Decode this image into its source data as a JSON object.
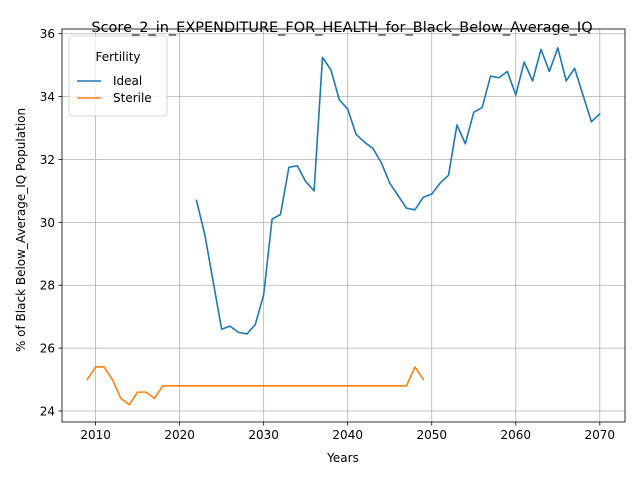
{
  "chart_data": {
    "type": "line",
    "title": "Score_2_in_EXPENDITURE_FOR_HEALTH_for_Black_Below_Average_IQ",
    "xlabel": "Years",
    "ylabel": "% of Black Below_Average_IQ Population",
    "xlim": [
      2006,
      2073
    ],
    "ylim": [
      23.65,
      36.15
    ],
    "xticks": [
      2010,
      2020,
      2030,
      2040,
      2050,
      2060,
      2070
    ],
    "yticks": [
      24,
      26,
      28,
      30,
      32,
      34,
      36
    ],
    "grid": true,
    "legend": {
      "title": "Fertility",
      "position": "upper-left"
    },
    "series": [
      {
        "name": "Ideal",
        "color": "#1f77b4",
        "x": [
          2022,
          2023,
          2024,
          2025,
          2026,
          2027,
          2028,
          2029,
          2030,
          2031,
          2032,
          2033,
          2034,
          2035,
          2036,
          2037,
          2038,
          2039,
          2040,
          2041,
          2042,
          2043,
          2044,
          2045,
          2046,
          2047,
          2048,
          2049,
          2050,
          2051,
          2052,
          2053,
          2054,
          2055,
          2056,
          2057,
          2058,
          2059,
          2060,
          2061,
          2062,
          2063,
          2064,
          2065,
          2066,
          2067,
          2068,
          2069,
          2070
        ],
        "y": [
          30.7,
          29.6,
          28.1,
          26.6,
          26.7,
          26.5,
          26.45,
          26.75,
          27.7,
          30.1,
          30.25,
          31.75,
          31.8,
          31.3,
          31.0,
          35.25,
          34.85,
          33.9,
          33.6,
          32.8,
          32.55,
          32.35,
          31.9,
          31.25,
          30.85,
          30.45,
          30.4,
          30.8,
          30.9,
          31.25,
          31.5,
          33.1,
          32.5,
          33.5,
          33.65,
          34.65,
          34.6,
          34.8,
          34.05,
          35.1,
          34.5,
          35.5,
          34.8,
          35.55,
          34.5,
          34.9,
          34.05,
          33.2,
          33.45
        ]
      },
      {
        "name": "Sterile",
        "color": "#ff7f0e",
        "x": [
          2009,
          2010,
          2011,
          2012,
          2013,
          2014,
          2015,
          2016,
          2017,
          2018,
          2019,
          2020,
          2021,
          2022,
          2023,
          2024,
          2025,
          2026,
          2027,
          2028,
          2029,
          2030,
          2031,
          2032,
          2033,
          2034,
          2035,
          2036,
          2037,
          2038,
          2039,
          2040,
          2041,
          2042,
          2043,
          2044,
          2045,
          2046,
          2047,
          2048,
          2049
        ],
        "y": [
          25.0,
          25.4,
          25.4,
          25.0,
          24.4,
          24.2,
          24.6,
          24.6,
          24.4,
          24.8,
          24.8,
          24.8,
          24.8,
          24.8,
          24.8,
          24.8,
          24.8,
          24.8,
          24.8,
          24.8,
          24.8,
          24.8,
          24.8,
          24.8,
          24.8,
          24.8,
          24.8,
          24.8,
          24.8,
          24.8,
          24.8,
          24.8,
          24.8,
          24.8,
          24.8,
          24.8,
          24.8,
          24.8,
          24.8,
          25.4,
          25.0
        ]
      }
    ]
  }
}
